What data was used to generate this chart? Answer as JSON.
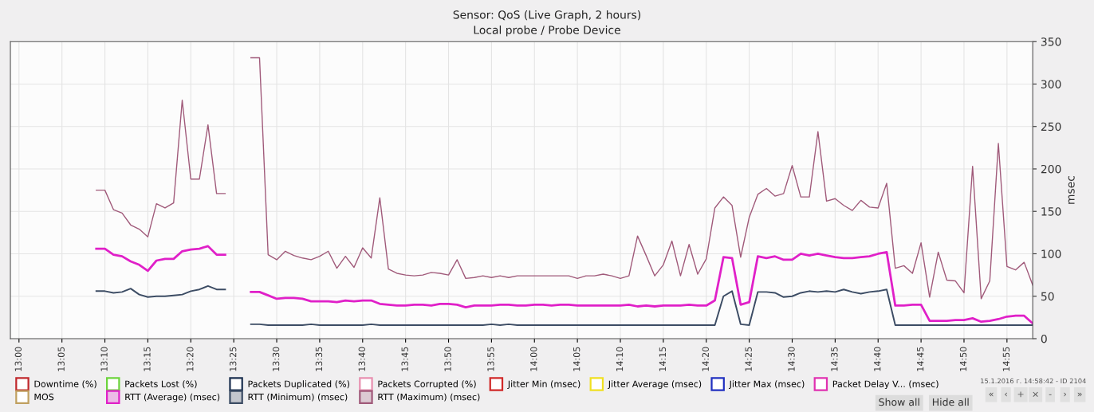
{
  "chart_data": {
    "type": "line",
    "title": "Sensor: QoS (Live Graph, 2 hours)",
    "subtitle": "Local probe / Probe Device",
    "ylabel": "msec",
    "x": [
      "2016-01-15T13:09",
      "2016-01-15T13:10",
      "2016-01-15T13:11",
      "2016-01-15T13:12",
      "2016-01-15T13:13",
      "2016-01-15T13:14",
      "2016-01-15T13:15",
      "2016-01-15T13:16",
      "2016-01-15T13:17",
      "2016-01-15T13:18",
      "2016-01-15T13:19",
      "2016-01-15T13:20",
      "2016-01-15T13:21",
      "2016-01-15T13:22",
      "2016-01-15T13:23",
      "2016-01-15T13:24",
      "2016-01-15T13:25",
      "2016-01-15T13:26",
      "2016-01-15T13:27",
      "2016-01-15T13:28",
      "2016-01-15T13:29",
      "2016-01-15T13:30",
      "2016-01-15T13:31",
      "2016-01-15T13:32",
      "2016-01-15T13:33",
      "2016-01-15T13:34",
      "2016-01-15T13:35",
      "2016-01-15T13:36",
      "2016-01-15T13:37",
      "2016-01-15T13:38",
      "2016-01-15T13:39",
      "2016-01-15T13:40",
      "2016-01-15T13:41",
      "2016-01-15T13:42",
      "2016-01-15T13:43",
      "2016-01-15T13:44",
      "2016-01-15T13:45",
      "2016-01-15T13:46",
      "2016-01-15T13:47",
      "2016-01-15T13:48",
      "2016-01-15T13:49",
      "2016-01-15T13:50",
      "2016-01-15T13:51",
      "2016-01-15T13:52",
      "2016-01-15T13:53",
      "2016-01-15T13:54",
      "2016-01-15T13:55",
      "2016-01-15T13:56",
      "2016-01-15T13:57",
      "2016-01-15T13:58",
      "2016-01-15T13:59",
      "2016-01-15T14:00",
      "2016-01-15T14:01",
      "2016-01-15T14:02",
      "2016-01-15T14:03",
      "2016-01-15T14:04",
      "2016-01-15T14:05",
      "2016-01-15T14:06",
      "2016-01-15T14:07",
      "2016-01-15T14:08",
      "2016-01-15T14:09",
      "2016-01-15T14:10",
      "2016-01-15T14:11",
      "2016-01-15T14:12",
      "2016-01-15T14:13",
      "2016-01-15T14:14",
      "2016-01-15T14:15",
      "2016-01-15T14:16",
      "2016-01-15T14:17",
      "2016-01-15T14:18",
      "2016-01-15T14:19",
      "2016-01-15T14:20",
      "2016-01-15T14:21",
      "2016-01-15T14:22",
      "2016-01-15T14:23",
      "2016-01-15T14:24",
      "2016-01-15T14:25",
      "2016-01-15T14:26",
      "2016-01-15T14:27",
      "2016-01-15T14:28",
      "2016-01-15T14:29",
      "2016-01-15T14:30",
      "2016-01-15T14:31",
      "2016-01-15T14:32",
      "2016-01-15T14:33",
      "2016-01-15T14:34",
      "2016-01-15T14:35",
      "2016-01-15T14:36",
      "2016-01-15T14:37",
      "2016-01-15T14:38",
      "2016-01-15T14:39",
      "2016-01-15T14:40",
      "2016-01-15T14:41",
      "2016-01-15T14:42",
      "2016-01-15T14:43",
      "2016-01-15T14:44",
      "2016-01-15T14:45",
      "2016-01-15T14:46",
      "2016-01-15T14:47",
      "2016-01-15T14:48",
      "2016-01-15T14:49",
      "2016-01-15T14:50",
      "2016-01-15T14:51",
      "2016-01-15T14:52",
      "2016-01-15T14:53",
      "2016-01-15T14:54",
      "2016-01-15T14:55",
      "2016-01-15T14:56",
      "2016-01-15T14:57",
      "2016-01-15T14:58"
    ],
    "series": [
      {
        "name": "Downtime (%)",
        "color": "#c0282c",
        "values": [
          null,
          null,
          null,
          null,
          null,
          null,
          null,
          null,
          null,
          null,
          null,
          null,
          null,
          null,
          null,
          null,
          null,
          null,
          null,
          null,
          null,
          null,
          null,
          null,
          null,
          null,
          null,
          null,
          null,
          null,
          null,
          null,
          null,
          null,
          null,
          null,
          null,
          null,
          null,
          null,
          null,
          null,
          null,
          null,
          null,
          null,
          null,
          null,
          null,
          null,
          null,
          null,
          null,
          null,
          null,
          null,
          null,
          null,
          null,
          null,
          null,
          null,
          null,
          null,
          null,
          null,
          null,
          null,
          null,
          null,
          null,
          null,
          null,
          null,
          null,
          null,
          null,
          null,
          null,
          null,
          null,
          null,
          null,
          null,
          null,
          null,
          null,
          null,
          null,
          null,
          null,
          null,
          null,
          null,
          null,
          null,
          null,
          null,
          null,
          null,
          null,
          null,
          null,
          null,
          null,
          null,
          null,
          null,
          null,
          null
        ]
      },
      {
        "name": "Packets Lost (%)",
        "color": "#6cd43c",
        "values": [
          null,
          null,
          null,
          null,
          null,
          null,
          null,
          null,
          null,
          null,
          null,
          null,
          null,
          null,
          null,
          null,
          null,
          null,
          null,
          null,
          null,
          null,
          null,
          null,
          null,
          null,
          null,
          null,
          null,
          null,
          null,
          null,
          null,
          null,
          null,
          null,
          null,
          null,
          null,
          null,
          null,
          null,
          null,
          null,
          null,
          null,
          null,
          null,
          null,
          null,
          null,
          null,
          null,
          null,
          null,
          null,
          null,
          null,
          null,
          null,
          null,
          null,
          null,
          null,
          null,
          null,
          null,
          null,
          null,
          null,
          null,
          null,
          null,
          null,
          null,
          null,
          null,
          null,
          null,
          null,
          null,
          null,
          null,
          null,
          null,
          null,
          null,
          null,
          null,
          null,
          null,
          null,
          null,
          null,
          null,
          null,
          null,
          null,
          null,
          null,
          null,
          null,
          null,
          null,
          null,
          null,
          null,
          null,
          null,
          null
        ]
      },
      {
        "name": "Packets Duplicated (%)",
        "color": "#1c3050",
        "values": [
          null,
          null,
          null,
          null,
          null,
          null,
          null,
          null,
          null,
          null,
          null,
          null,
          null,
          null,
          null,
          null,
          null,
          null,
          null,
          null,
          null,
          null,
          null,
          null,
          null,
          null,
          null,
          null,
          null,
          null,
          null,
          null,
          null,
          null,
          null,
          null,
          null,
          null,
          null,
          null,
          null,
          null,
          null,
          null,
          null,
          null,
          null,
          null,
          null,
          null,
          null,
          null,
          null,
          null,
          null,
          null,
          null,
          null,
          null,
          null,
          null,
          null,
          null,
          null,
          null,
          null,
          null,
          null,
          null,
          null,
          null,
          null,
          null,
          null,
          null,
          null,
          null,
          null,
          null,
          null,
          null,
          null,
          null,
          null,
          null,
          null,
          null,
          null,
          null,
          null,
          null,
          null,
          null,
          null,
          null,
          null,
          null,
          null,
          null,
          null,
          null,
          null,
          null,
          null,
          null,
          null,
          null,
          null,
          null,
          null
        ]
      },
      {
        "name": "Packets Corrupted (%)",
        "color": "#e890b0",
        "values": [
          null,
          null,
          null,
          null,
          null,
          null,
          null,
          null,
          null,
          null,
          null,
          null,
          null,
          null,
          null,
          null,
          null,
          null,
          null,
          null,
          null,
          null,
          null,
          null,
          null,
          null,
          null,
          null,
          null,
          null,
          null,
          null,
          null,
          null,
          null,
          null,
          null,
          null,
          null,
          null,
          null,
          null,
          null,
          null,
          null,
          null,
          null,
          null,
          null,
          null,
          null,
          null,
          null,
          null,
          null,
          null,
          null,
          null,
          null,
          null,
          null,
          null,
          null,
          null,
          null,
          null,
          null,
          null,
          null,
          null,
          null,
          null,
          null,
          null,
          null,
          null,
          null,
          null,
          null,
          null,
          null,
          null,
          null,
          null,
          null,
          null,
          null,
          null,
          null,
          null,
          null,
          null,
          null,
          null,
          null,
          null,
          null,
          null,
          null,
          null,
          null,
          null,
          null,
          null,
          null,
          null,
          null,
          null,
          null,
          null
        ]
      },
      {
        "name": "Jitter Min (msec)",
        "color": "#d02828",
        "values": [
          null,
          null,
          null,
          null,
          null,
          null,
          null,
          null,
          null,
          null,
          null,
          null,
          null,
          null,
          null,
          null,
          null,
          null,
          null,
          null,
          null,
          null,
          null,
          null,
          null,
          null,
          null,
          null,
          null,
          null,
          null,
          null,
          null,
          null,
          null,
          null,
          null,
          null,
          null,
          null,
          null,
          null,
          null,
          null,
          null,
          null,
          null,
          null,
          null,
          null,
          null,
          null,
          null,
          null,
          null,
          null,
          null,
          null,
          null,
          null,
          null,
          null,
          null,
          null,
          null,
          null,
          null,
          null,
          null,
          null,
          null,
          null,
          null,
          null,
          null,
          null,
          null,
          null,
          null,
          null,
          null,
          null,
          null,
          null,
          null,
          null,
          null,
          null,
          null,
          null,
          null,
          null,
          null,
          null,
          null,
          null,
          null,
          null,
          null,
          null,
          null,
          null,
          null,
          null,
          null,
          null,
          null,
          null,
          null,
          null
        ]
      },
      {
        "name": "Jitter Average (msec)",
        "color": "#f0e020",
        "values": [
          null,
          null,
          null,
          null,
          null,
          null,
          null,
          null,
          null,
          null,
          null,
          null,
          null,
          null,
          null,
          null,
          null,
          null,
          null,
          null,
          null,
          null,
          null,
          null,
          null,
          null,
          null,
          null,
          null,
          null,
          null,
          null,
          null,
          null,
          null,
          null,
          null,
          null,
          null,
          null,
          null,
          null,
          null,
          null,
          null,
          null,
          null,
          null,
          null,
          null,
          null,
          null,
          null,
          null,
          null,
          null,
          null,
          null,
          null,
          null,
          null,
          null,
          null,
          null,
          null,
          null,
          null,
          null,
          null,
          null,
          null,
          null,
          null,
          null,
          null,
          null,
          null,
          null,
          null,
          null,
          null,
          null,
          null,
          null,
          null,
          null,
          null,
          null,
          null,
          null,
          null,
          null,
          null,
          null,
          null,
          null,
          null,
          null,
          null,
          null,
          null,
          null,
          null,
          null,
          null,
          null,
          null,
          null,
          null,
          null
        ]
      },
      {
        "name": "Jitter Max (msec)",
        "color": "#2030c0",
        "values": [
          null,
          null,
          null,
          null,
          null,
          null,
          null,
          null,
          null,
          null,
          null,
          null,
          null,
          null,
          null,
          null,
          null,
          null,
          null,
          null,
          null,
          null,
          null,
          null,
          null,
          null,
          null,
          null,
          null,
          null,
          null,
          null,
          null,
          null,
          null,
          null,
          null,
          null,
          null,
          null,
          null,
          null,
          null,
          null,
          null,
          null,
          null,
          null,
          null,
          null,
          null,
          null,
          null,
          null,
          null,
          null,
          null,
          null,
          null,
          null,
          null,
          null,
          null,
          null,
          null,
          null,
          null,
          null,
          null,
          null,
          null,
          null,
          null,
          null,
          null,
          null,
          null,
          null,
          null,
          null,
          null,
          null,
          null,
          null,
          null,
          null,
          null,
          null,
          null,
          null,
          null,
          null,
          null,
          null,
          null,
          null,
          null,
          null,
          null,
          null,
          null,
          null,
          null,
          null,
          null,
          null,
          null,
          null,
          null,
          null
        ]
      },
      {
        "name": "Packet Delay V... (msec)",
        "color": "#e030b0",
        "values": [
          null,
          null,
          null,
          null,
          null,
          null,
          null,
          null,
          null,
          null,
          null,
          null,
          null,
          null,
          null,
          null,
          null,
          null,
          null,
          null,
          null,
          null,
          null,
          null,
          null,
          null,
          null,
          null,
          null,
          null,
          null,
          null,
          null,
          null,
          null,
          null,
          null,
          null,
          null,
          null,
          null,
          null,
          null,
          null,
          null,
          null,
          null,
          null,
          null,
          null,
          null,
          null,
          null,
          null,
          null,
          null,
          null,
          null,
          null,
          null,
          null,
          null,
          null,
          null,
          null,
          null,
          null,
          null,
          null,
          null,
          null,
          null,
          null,
          null,
          null,
          null,
          null,
          null,
          null,
          null,
          null,
          null,
          null,
          null,
          null,
          null,
          null,
          null,
          null,
          null,
          null,
          null,
          null,
          null,
          null,
          null,
          null,
          null,
          null,
          null,
          null,
          null,
          null,
          null,
          null,
          null,
          null,
          null,
          null,
          null
        ]
      },
      {
        "name": "MOS",
        "color": "#c0a060",
        "values": [
          null,
          null,
          null,
          null,
          null,
          null,
          null,
          null,
          null,
          null,
          null,
          null,
          null,
          null,
          null,
          null,
          null,
          null,
          null,
          null,
          null,
          null,
          null,
          null,
          null,
          null,
          null,
          null,
          null,
          null,
          null,
          null,
          null,
          null,
          null,
          null,
          null,
          null,
          null,
          null,
          null,
          null,
          null,
          null,
          null,
          null,
          null,
          null,
          null,
          null,
          null,
          null,
          null,
          null,
          null,
          null,
          null,
          null,
          null,
          null,
          null,
          null,
          null,
          null,
          null,
          null,
          null,
          null,
          null,
          null,
          null,
          null,
          null,
          null,
          null,
          null,
          null,
          null,
          null,
          null,
          null,
          null,
          null,
          null,
          null,
          null,
          null,
          null,
          null,
          null,
          null,
          null,
          null,
          null,
          null,
          null,
          null,
          null,
          null,
          null,
          null,
          null,
          null,
          null,
          null,
          null,
          null,
          null,
          null,
          null
        ]
      },
      {
        "name": "RTT (Average) (msec)",
        "color": "#e020c8",
        "values": [
          106,
          106,
          99,
          97,
          91,
          87,
          80,
          92,
          94,
          94,
          103,
          105,
          106,
          109,
          99,
          99,
          null,
          null,
          55,
          55,
          51,
          47,
          48,
          48,
          47,
          44,
          44,
          44,
          43,
          45,
          44,
          45,
          45,
          41,
          40,
          39,
          39,
          40,
          40,
          39,
          41,
          41,
          40,
          37,
          39,
          39,
          39,
          40,
          40,
          39,
          39,
          40,
          40,
          39,
          40,
          40,
          39,
          39,
          39,
          39,
          39,
          39,
          40,
          38,
          39,
          38,
          39,
          39,
          39,
          40,
          39,
          39,
          45,
          96,
          95,
          40,
          43,
          97,
          95,
          97,
          93,
          93,
          100,
          98,
          100,
          98,
          96,
          95,
          95,
          96,
          97,
          100,
          102,
          39,
          39,
          40,
          40,
          21,
          21,
          21,
          22,
          22,
          24,
          20,
          21,
          23,
          26,
          27,
          27,
          18
        ]
      },
      {
        "name": "RTT (Minimum) (msec)",
        "color": "#3c4c64",
        "values": [
          56,
          56,
          54,
          55,
          59,
          52,
          49,
          50,
          50,
          51,
          52,
          56,
          58,
          62,
          58,
          58,
          null,
          null,
          17,
          17,
          16,
          16,
          16,
          16,
          16,
          17,
          16,
          16,
          16,
          16,
          16,
          16,
          17,
          16,
          16,
          16,
          16,
          16,
          16,
          16,
          16,
          16,
          16,
          16,
          16,
          16,
          17,
          16,
          17,
          16,
          16,
          16,
          16,
          16,
          16,
          16,
          16,
          16,
          16,
          16,
          16,
          16,
          16,
          16,
          16,
          16,
          16,
          16,
          16,
          16,
          16,
          16,
          16,
          50,
          56,
          17,
          16,
          55,
          55,
          54,
          49,
          50,
          54,
          56,
          55,
          56,
          55,
          58,
          55,
          53,
          55,
          56,
          58,
          16,
          16,
          16,
          16,
          16,
          16,
          16,
          16,
          16,
          16,
          16,
          16,
          16,
          16,
          16,
          16,
          16
        ]
      },
      {
        "name": "RTT (Maximum) (msec)",
        "color": "#a05a7a",
        "values": [
          175,
          175,
          152,
          148,
          134,
          129,
          120,
          159,
          154,
          160,
          281,
          188,
          188,
          252,
          171,
          171,
          null,
          null,
          331,
          331,
          99,
          93,
          103,
          98,
          95,
          93,
          97,
          103,
          83,
          97,
          84,
          107,
          95,
          166,
          82,
          77,
          75,
          74,
          75,
          78,
          77,
          75,
          93,
          71,
          72,
          74,
          72,
          74,
          72,
          74,
          74,
          74,
          74,
          74,
          74,
          74,
          71,
          74,
          74,
          76,
          74,
          71,
          74,
          121,
          98,
          74,
          87,
          115,
          74,
          111,
          76,
          94,
          154,
          167,
          157,
          96,
          143,
          170,
          177,
          168,
          171,
          204,
          167,
          167,
          244,
          162,
          165,
          157,
          151,
          163,
          155,
          154,
          183,
          83,
          86,
          77,
          113,
          49,
          102,
          69,
          68,
          54,
          203,
          47,
          68,
          230,
          85,
          81,
          90,
          63
        ]
      }
    ],
    "xlim": [
      "2016-01-15T12:59",
      "2016-01-15T14:58"
    ],
    "xticks": [
      {
        "value": "2016-01-15T13:00",
        "label": "13:00"
      },
      {
        "value": "2016-01-15T13:05",
        "label": "13:05"
      },
      {
        "value": "2016-01-15T13:10",
        "label": "13:10"
      },
      {
        "value": "2016-01-15T13:15",
        "label": "13:15"
      },
      {
        "value": "2016-01-15T13:20",
        "label": "13:20"
      },
      {
        "value": "2016-01-15T13:25",
        "label": "13:25"
      },
      {
        "value": "2016-01-15T13:30",
        "label": "13:30"
      },
      {
        "value": "2016-01-15T13:35",
        "label": "13:35"
      },
      {
        "value": "2016-01-15T13:40",
        "label": "13:40"
      },
      {
        "value": "2016-01-15T13:45",
        "label": "13:45"
      },
      {
        "value": "2016-01-15T13:50",
        "label": "13:50"
      },
      {
        "value": "2016-01-15T13:55",
        "label": "13:55"
      },
      {
        "value": "2016-01-15T14:00",
        "label": "14:00"
      },
      {
        "value": "2016-01-15T14:05",
        "label": "14:05"
      },
      {
        "value": "2016-01-15T14:10",
        "label": "14:10"
      },
      {
        "value": "2016-01-15T14:15",
        "label": "14:15"
      },
      {
        "value": "2016-01-15T14:20",
        "label": "14:20"
      },
      {
        "value": "2016-01-15T14:25",
        "label": "14:25"
      },
      {
        "value": "2016-01-15T14:30",
        "label": "14:30"
      },
      {
        "value": "2016-01-15T14:35",
        "label": "14:35"
      },
      {
        "value": "2016-01-15T14:40",
        "label": "14:40"
      },
      {
        "value": "2016-01-15T14:45",
        "label": "14:45"
      },
      {
        "value": "2016-01-15T14:50",
        "label": "14:50"
      },
      {
        "value": "2016-01-15T14:55",
        "label": "14:55"
      }
    ],
    "ylim": [
      0,
      350
    ],
    "yticks": [
      0,
      50,
      100,
      150,
      200,
      250,
      300,
      350
    ],
    "grid": true,
    "legend": "bottom",
    "marker": "none",
    "line_style": "solid",
    "annotations": [
      "15.1.2016 г. 14:58:42 - ID 2104",
      "Show all",
      "Hide all",
      "«",
      "‹",
      "+",
      "×",
      "-",
      "›",
      "»"
    ]
  }
}
